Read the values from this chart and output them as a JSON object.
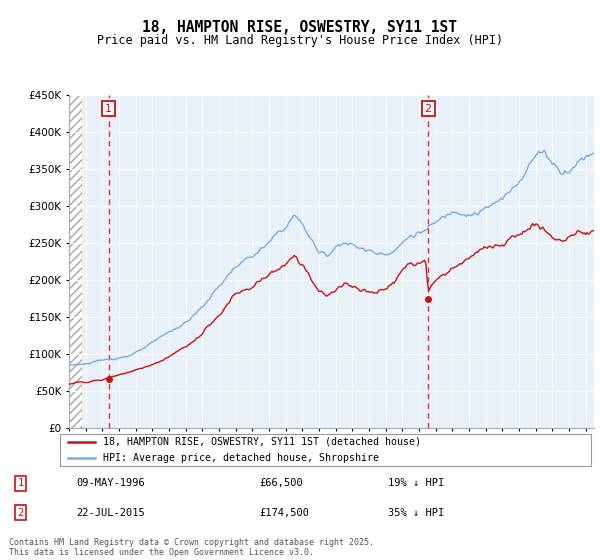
{
  "title": "18, HAMPTON RISE, OSWESTRY, SY11 1ST",
  "subtitle": "Price paid vs. HM Land Registry's House Price Index (HPI)",
  "legend_line1": "18, HAMPTON RISE, OSWESTRY, SY11 1ST (detached house)",
  "legend_line2": "HPI: Average price, detached house, Shropshire",
  "annotation1_date": "09-MAY-1996",
  "annotation1_price": "£66,500",
  "annotation1_hpi": "19% ↓ HPI",
  "annotation1_year": 1996.37,
  "annotation2_date": "22-JUL-2015",
  "annotation2_price": "£174,500",
  "annotation2_hpi": "35% ↓ HPI",
  "annotation2_year": 2015.55,
  "sale1_x": 1996.37,
  "sale1_y": 66500,
  "sale2_x": 2015.55,
  "sale2_y": 174500,
  "hpi_color": "#7aaddb",
  "price_color": "#cc1111",
  "dashed_line_color": "#dd3333",
  "annotation_box_color": "#cc1111",
  "background_plot": "#e8f0f8",
  "grid_color": "#ffffff",
  "ylim": [
    0,
    450000
  ],
  "xlim_start": 1994.0,
  "xlim_end": 2025.5,
  "footnote": "Contains HM Land Registry data © Crown copyright and database right 2025.\nThis data is licensed under the Open Government Licence v3.0."
}
